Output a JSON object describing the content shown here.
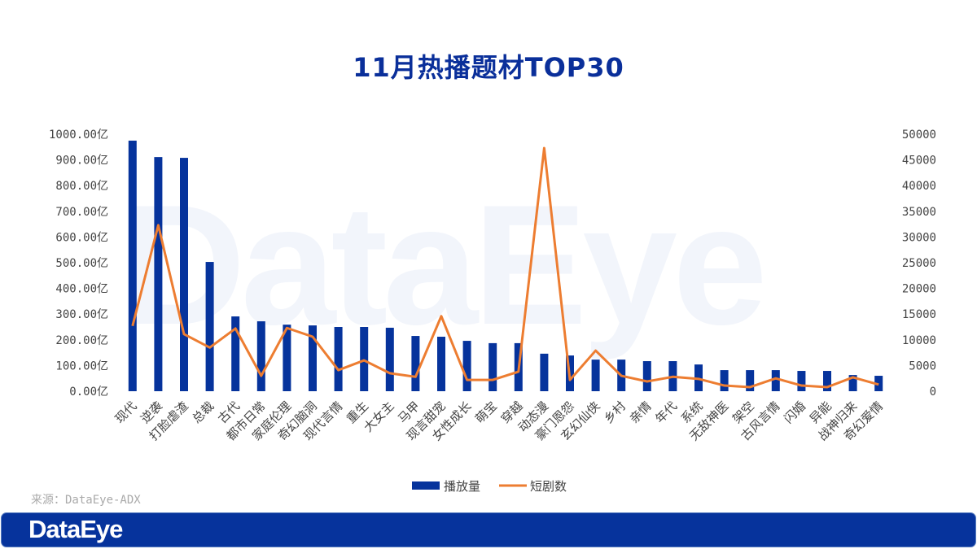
{
  "title": "11月热播题材TOP30",
  "source": "来源：DataEye-ADX",
  "footer_logo": "DataEye",
  "watermark": "DataEye",
  "colors": {
    "bar": "#06339c",
    "line": "#ed7d31",
    "title": "#0a2f9a",
    "footer": "#06339c"
  },
  "chart_data": {
    "type": "bar+line",
    "title": "11月热播题材TOP30",
    "categories": [
      "现代",
      "逆袭",
      "打脸虐渣",
      "总裁",
      "古代",
      "都市日常",
      "家庭伦理",
      "奇幻脑洞",
      "现代言情",
      "重生",
      "大女主",
      "马甲",
      "现言甜宠",
      "女性成长",
      "萌宝",
      "穿越",
      "动态漫",
      "豪门恩怨",
      "玄幻仙侠",
      "乡村",
      "亲情",
      "年代",
      "系统",
      "无敌神医",
      "架空",
      "古风言情",
      "闪婚",
      "异能",
      "战神归来",
      "奇幻爱情"
    ],
    "series": [
      {
        "name": "播放量",
        "type": "bar",
        "axis": "left",
        "unit": "亿",
        "values": [
          975,
          911,
          908,
          503,
          291,
          272,
          259,
          256,
          250,
          250,
          247,
          215,
          212,
          196,
          187,
          187,
          146,
          139,
          123,
          123,
          117,
          117,
          104,
          82,
          82,
          82,
          79,
          79,
          63,
          60
        ]
      },
      {
        "name": "短剧数",
        "type": "line",
        "axis": "right",
        "values": [
          12700,
          32300,
          11100,
          8500,
          12200,
          3000,
          12300,
          10600,
          4100,
          6000,
          3500,
          2800,
          14600,
          2200,
          2200,
          3800,
          47300,
          2200,
          7900,
          3000,
          1900,
          2800,
          2400,
          1100,
          800,
          2500,
          1100,
          800,
          2700,
          1300
        ]
      }
    ],
    "y_left": {
      "min": 0,
      "max": 1000,
      "step": 100,
      "tick_labels": [
        "0.00亿",
        "100.00亿",
        "200.00亿",
        "300.00亿",
        "400.00亿",
        "500.00亿",
        "600.00亿",
        "700.00亿",
        "800.00亿",
        "900.00亿",
        "1000.00亿"
      ]
    },
    "y_right": {
      "min": 0,
      "max": 50000,
      "step": 5000,
      "tick_labels": [
        "0",
        "5000",
        "10000",
        "15000",
        "20000",
        "25000",
        "30000",
        "35000",
        "40000",
        "45000",
        "50000"
      ]
    },
    "grid": false,
    "legend": {
      "placement": "bottom",
      "entries": [
        "播放量",
        "短剧数"
      ]
    }
  }
}
